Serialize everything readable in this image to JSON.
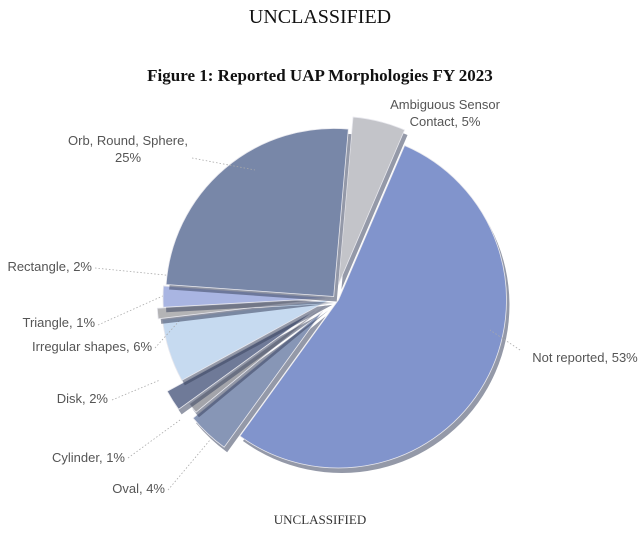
{
  "header": {
    "classification": "UNCLASSIFIED"
  },
  "footer": {
    "classification": "UNCLASSIFIED"
  },
  "chart_data": {
    "type": "pie",
    "title": "Figure 1: Reported UAP Morphologies FY 2023",
    "slices": [
      {
        "label": "Ambiguous Sensor Contact",
        "value": 5,
        "text": [
          "Ambiguous Sensor",
          "Contact, 5%"
        ],
        "color": "#c3c4c9"
      },
      {
        "label": "Not reported",
        "value": 53,
        "text": [
          "Not reported, 53%"
        ],
        "color": "#8194cc"
      },
      {
        "label": "Oval",
        "value": 4,
        "text": [
          "Oval, 4%"
        ],
        "color": "#8796b6"
      },
      {
        "label": "Cylinder",
        "value": 1,
        "text": [
          "Cylinder, 1%"
        ],
        "color": "#a3a4aa"
      },
      {
        "label": "Disk",
        "value": 2,
        "text": [
          "Disk, 2%"
        ],
        "color": "#6f7a98"
      },
      {
        "label": "Irregular shapes",
        "value": 6,
        "text": [
          "Irregular shapes, 6%"
        ],
        "color": "#c6daf0"
      },
      {
        "label": "Triangle",
        "value": 1,
        "text": [
          "Triangle, 1%"
        ],
        "color": "#b4b4b6"
      },
      {
        "label": "Rectangle",
        "value": 2,
        "text": [
          "Rectangle, 2%"
        ],
        "color": "#a9b5e2"
      },
      {
        "label": "Orb, Round, Sphere",
        "value": 25,
        "text": [
          "Orb, Round, Sphere,",
          "25%"
        ],
        "color": "#7887a8"
      }
    ]
  }
}
